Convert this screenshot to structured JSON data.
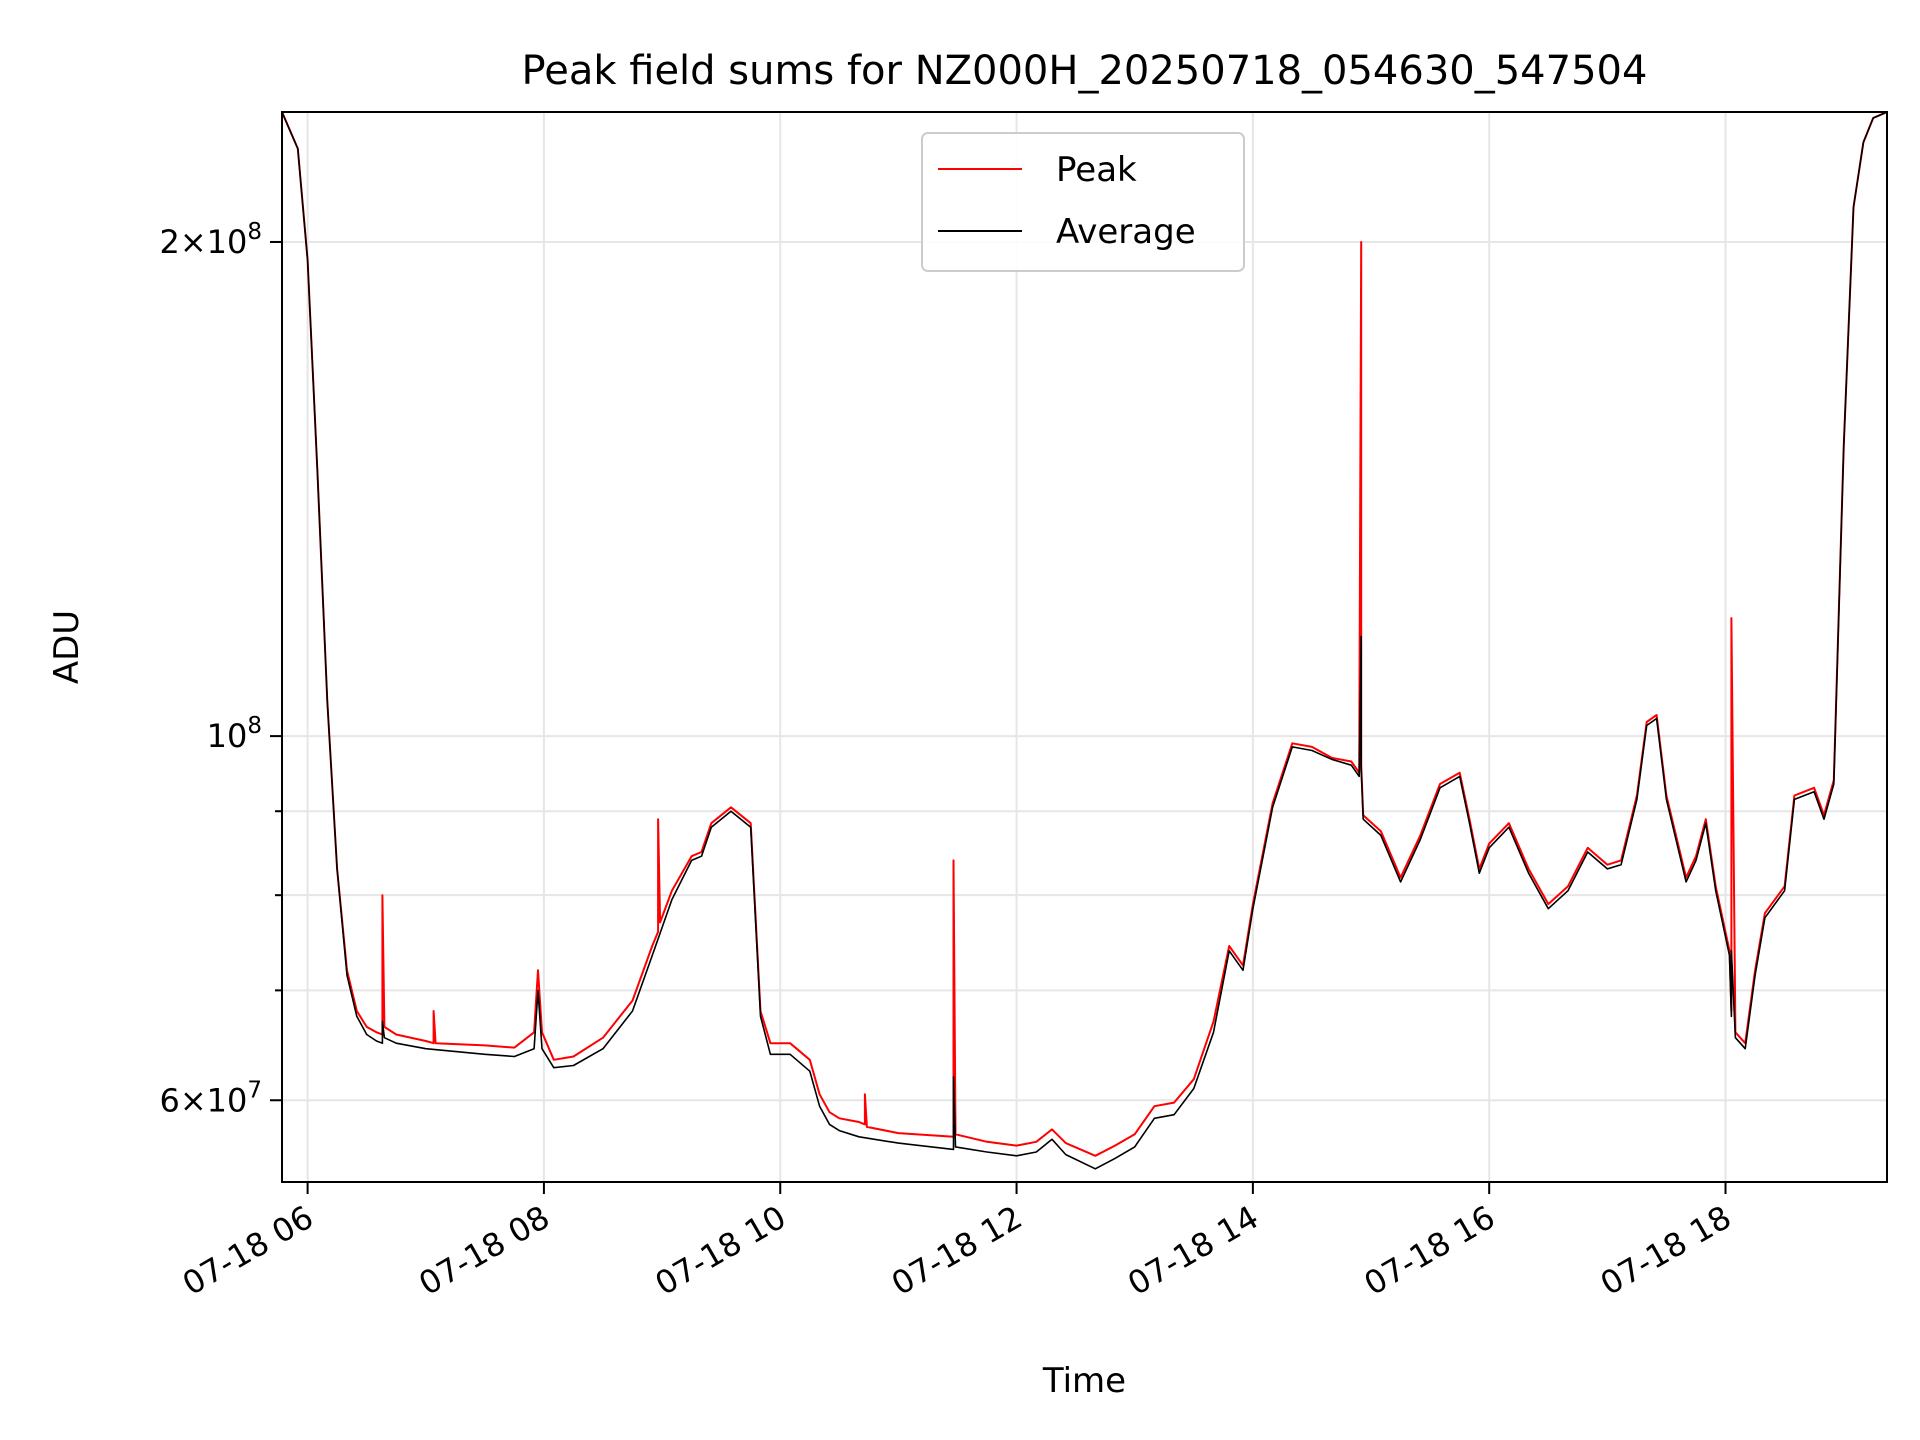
{
  "chart_data": {
    "type": "line",
    "title": "Peak field sums for NZ000H_20250718_054630_547504",
    "xlabel": "Time",
    "ylabel": "ADU",
    "y_scale": "log",
    "ylim": [
      53500000,
      240000000
    ],
    "xlim": [
      "2025-07-18 05:47",
      "2025-07-18 19:22"
    ],
    "x_ticks": [
      "2025-07-18 06:00",
      "2025-07-18 08:00",
      "2025-07-18 10:00",
      "2025-07-18 12:00",
      "2025-07-18 14:00",
      "2025-07-18 16:00",
      "2025-07-18 18:00"
    ],
    "x_tick_labels": [
      "07-18 06",
      "07-18 08",
      "07-18 10",
      "07-18 12",
      "07-18 14",
      "07-18 16",
      "07-18 18"
    ],
    "y_ticks_major": [
      60000000,
      100000000,
      200000000
    ],
    "y_tick_labels": [
      {
        "base": "6",
        "exp": "7"
      },
      {
        "base": "",
        "exp": "8"
      },
      {
        "base": "2",
        "exp": "8"
      }
    ],
    "y_ticks_minor": [
      70000000,
      80000000,
      90000000
    ],
    "grid": true,
    "legend_position": "top-center",
    "series": [
      {
        "name": "Peak",
        "color": "#ff0000",
        "x": [
          "2025-07-18 05:47",
          "2025-07-18 05:55",
          "2025-07-18 06:00",
          "2025-07-18 06:05",
          "2025-07-18 06:10",
          "2025-07-18 06:15",
          "2025-07-18 06:20",
          "2025-07-18 06:25",
          "2025-07-18 06:30",
          "2025-07-18 06:35",
          "2025-07-18 06:38",
          "2025-07-18 06:38",
          "2025-07-18 06:39",
          "2025-07-18 06:45",
          "2025-07-18 07:00",
          "2025-07-18 07:04",
          "2025-07-18 07:04",
          "2025-07-18 07:05",
          "2025-07-18 07:30",
          "2025-07-18 07:45",
          "2025-07-18 07:55",
          "2025-07-18 07:57",
          "2025-07-18 07:59",
          "2025-07-18 08:05",
          "2025-07-18 08:15",
          "2025-07-18 08:30",
          "2025-07-18 08:45",
          "2025-07-18 08:55",
          "2025-07-18 08:58",
          "2025-07-18 08:58",
          "2025-07-18 08:59",
          "2025-07-18 09:05",
          "2025-07-18 09:15",
          "2025-07-18 09:20",
          "2025-07-18 09:25",
          "2025-07-18 09:35",
          "2025-07-18 09:45",
          "2025-07-18 09:50",
          "2025-07-18 09:55",
          "2025-07-18 10:05",
          "2025-07-18 10:15",
          "2025-07-18 10:20",
          "2025-07-18 10:25",
          "2025-07-18 10:30",
          "2025-07-18 10:40",
          "2025-07-18 10:43",
          "2025-07-18 10:43",
          "2025-07-18 10:44",
          "2025-07-18 11:00",
          "2025-07-18 11:28",
          "2025-07-18 11:28",
          "2025-07-18 11:29",
          "2025-07-18 11:45",
          "2025-07-18 12:00",
          "2025-07-18 12:10",
          "2025-07-18 12:18",
          "2025-07-18 12:25",
          "2025-07-18 12:40",
          "2025-07-18 12:50",
          "2025-07-18 13:00",
          "2025-07-18 13:10",
          "2025-07-18 13:20",
          "2025-07-18 13:30",
          "2025-07-18 13:40",
          "2025-07-18 13:48",
          "2025-07-18 13:55",
          "2025-07-18 14:00",
          "2025-07-18 14:10",
          "2025-07-18 14:20",
          "2025-07-18 14:30",
          "2025-07-18 14:40",
          "2025-07-18 14:50",
          "2025-07-18 14:54",
          "2025-07-18 14:55",
          "2025-07-18 14:55",
          "2025-07-18 14:56",
          "2025-07-18 15:05",
          "2025-07-18 15:15",
          "2025-07-18 15:25",
          "2025-07-18 15:35",
          "2025-07-18 15:45",
          "2025-07-18 15:50",
          "2025-07-18 15:55",
          "2025-07-18 16:00",
          "2025-07-18 16:10",
          "2025-07-18 16:20",
          "2025-07-18 16:30",
          "2025-07-18 16:40",
          "2025-07-18 16:50",
          "2025-07-18 17:00",
          "2025-07-18 17:07",
          "2025-07-18 17:15",
          "2025-07-18 17:20",
          "2025-07-18 17:25",
          "2025-07-18 17:30",
          "2025-07-18 17:40",
          "2025-07-18 17:45",
          "2025-07-18 17:50",
          "2025-07-18 17:55",
          "2025-07-18 18:02",
          "2025-07-18 18:03",
          "2025-07-18 18:03",
          "2025-07-18 18:05",
          "2025-07-18 18:10",
          "2025-07-18 18:15",
          "2025-07-18 18:20",
          "2025-07-18 18:30",
          "2025-07-18 18:35",
          "2025-07-18 18:45",
          "2025-07-18 18:50",
          "2025-07-18 18:55",
          "2025-07-18 19:00",
          "2025-07-18 19:05",
          "2025-07-18 19:10",
          "2025-07-18 19:15",
          "2025-07-18 19:22"
        ],
        "y": [
          240000000,
          228000000,
          195000000,
          145000000,
          105000000,
          83000000,
          72000000,
          68000000,
          66500000,
          66000000,
          65800000,
          80000000,
          66500000,
          65800000,
          65200000,
          65000000,
          68000000,
          65000000,
          64800000,
          64600000,
          66000000,
          72000000,
          66000000,
          63500000,
          63800000,
          65500000,
          69000000,
          74500000,
          76000000,
          89000000,
          77000000,
          80500000,
          84500000,
          85000000,
          88500000,
          90500000,
          88500000,
          68000000,
          65000000,
          65000000,
          63500000,
          60500000,
          59000000,
          58500000,
          58200000,
          58000000,
          60500000,
          57800000,
          57300000,
          57000000,
          84000000,
          57200000,
          56600000,
          56300000,
          56600000,
          57600000,
          56500000,
          55500000,
          56300000,
          57200000,
          59500000,
          59800000,
          61800000,
          67000000,
          74500000,
          72500000,
          79000000,
          91000000,
          99000000,
          98500000,
          97000000,
          96500000,
          95000000,
          200000000,
          96000000,
          89500000,
          87500000,
          82000000,
          87000000,
          93500000,
          95000000,
          89000000,
          83000000,
          86000000,
          88500000,
          83000000,
          79000000,
          81000000,
          85500000,
          83500000,
          84000000,
          92000000,
          102000000,
          103000000,
          92000000,
          82000000,
          84500000,
          89000000,
          81000000,
          74000000,
          68000000,
          118000000,
          66000000,
          65000000,
          72000000,
          78000000,
          81000000,
          92000000,
          93000000,
          89500000,
          94000000,
          150000000,
          210000000,
          230000000,
          238000000,
          240000000
        ]
      },
      {
        "name": "Average",
        "color": "#000000",
        "x": [
          "2025-07-18 05:47",
          "2025-07-18 05:55",
          "2025-07-18 06:00",
          "2025-07-18 06:05",
          "2025-07-18 06:10",
          "2025-07-18 06:15",
          "2025-07-18 06:20",
          "2025-07-18 06:25",
          "2025-07-18 06:30",
          "2025-07-18 06:35",
          "2025-07-18 06:38",
          "2025-07-18 06:38",
          "2025-07-18 06:39",
          "2025-07-18 06:45",
          "2025-07-18 07:00",
          "2025-07-18 07:30",
          "2025-07-18 07:45",
          "2025-07-18 07:55",
          "2025-07-18 07:57",
          "2025-07-18 07:59",
          "2025-07-18 08:05",
          "2025-07-18 08:15",
          "2025-07-18 08:30",
          "2025-07-18 08:45",
          "2025-07-18 08:55",
          "2025-07-18 09:05",
          "2025-07-18 09:15",
          "2025-07-18 09:20",
          "2025-07-18 09:25",
          "2025-07-18 09:35",
          "2025-07-18 09:45",
          "2025-07-18 09:50",
          "2025-07-18 09:55",
          "2025-07-18 10:05",
          "2025-07-18 10:15",
          "2025-07-18 10:20",
          "2025-07-18 10:25",
          "2025-07-18 10:30",
          "2025-07-18 10:40",
          "2025-07-18 11:00",
          "2025-07-18 11:28",
          "2025-07-18 11:28",
          "2025-07-18 11:29",
          "2025-07-18 11:45",
          "2025-07-18 12:00",
          "2025-07-18 12:10",
          "2025-07-18 12:18",
          "2025-07-18 12:25",
          "2025-07-18 12:40",
          "2025-07-18 12:50",
          "2025-07-18 13:00",
          "2025-07-18 13:10",
          "2025-07-18 13:20",
          "2025-07-18 13:30",
          "2025-07-18 13:40",
          "2025-07-18 13:48",
          "2025-07-18 13:55",
          "2025-07-18 14:00",
          "2025-07-18 14:10",
          "2025-07-18 14:20",
          "2025-07-18 14:30",
          "2025-07-18 14:40",
          "2025-07-18 14:50",
          "2025-07-18 14:54",
          "2025-07-18 14:55",
          "2025-07-18 14:55",
          "2025-07-18 14:56",
          "2025-07-18 15:05",
          "2025-07-18 15:15",
          "2025-07-18 15:25",
          "2025-07-18 15:35",
          "2025-07-18 15:45",
          "2025-07-18 15:50",
          "2025-07-18 15:55",
          "2025-07-18 16:00",
          "2025-07-18 16:10",
          "2025-07-18 16:20",
          "2025-07-18 16:30",
          "2025-07-18 16:40",
          "2025-07-18 16:50",
          "2025-07-18 17:00",
          "2025-07-18 17:07",
          "2025-07-18 17:15",
          "2025-07-18 17:20",
          "2025-07-18 17:25",
          "2025-07-18 17:30",
          "2025-07-18 17:40",
          "2025-07-18 17:45",
          "2025-07-18 17:50",
          "2025-07-18 17:55",
          "2025-07-18 18:02",
          "2025-07-18 18:03",
          "2025-07-18 18:03",
          "2025-07-18 18:05",
          "2025-07-18 18:10",
          "2025-07-18 18:15",
          "2025-07-18 18:20",
          "2025-07-18 18:30",
          "2025-07-18 18:35",
          "2025-07-18 18:45",
          "2025-07-18 18:50",
          "2025-07-18 18:55",
          "2025-07-18 19:00",
          "2025-07-18 19:05",
          "2025-07-18 19:10",
          "2025-07-18 19:15",
          "2025-07-18 19:22"
        ],
        "y": [
          240000000,
          228000000,
          195000000,
          145000000,
          105000000,
          83000000,
          71500000,
          67500000,
          65800000,
          65200000,
          65000000,
          67000000,
          65500000,
          65000000,
          64500000,
          64000000,
          63800000,
          64500000,
          70000000,
          64500000,
          62800000,
          63000000,
          64500000,
          68000000,
          73500000,
          79500000,
          84000000,
          84500000,
          88000000,
          90000000,
          88000000,
          67500000,
          64000000,
          64000000,
          62500000,
          59500000,
          58000000,
          57500000,
          57000000,
          56500000,
          56000000,
          62000000,
          56200000,
          55800000,
          55500000,
          55800000,
          56800000,
          55600000,
          54500000,
          55300000,
          56200000,
          58500000,
          58800000,
          61000000,
          66000000,
          74000000,
          72000000,
          78500000,
          90500000,
          98500000,
          98000000,
          96800000,
          96000000,
          94500000,
          115000000,
          95500000,
          89000000,
          87000000,
          81500000,
          86500000,
          93000000,
          94500000,
          88500000,
          82500000,
          85500000,
          88000000,
          82500000,
          78500000,
          80500000,
          85000000,
          83000000,
          83500000,
          91500000,
          101500000,
          102500000,
          91500000,
          81500000,
          84000000,
          88500000,
          80500000,
          73500000,
          67500000,
          74000000,
          65500000,
          64500000,
          71500000,
          77500000,
          80500000,
          91500000,
          92500000,
          89000000,
          93500000,
          150000000,
          210000000,
          230000000,
          238000000,
          240000000
        ]
      }
    ]
  }
}
